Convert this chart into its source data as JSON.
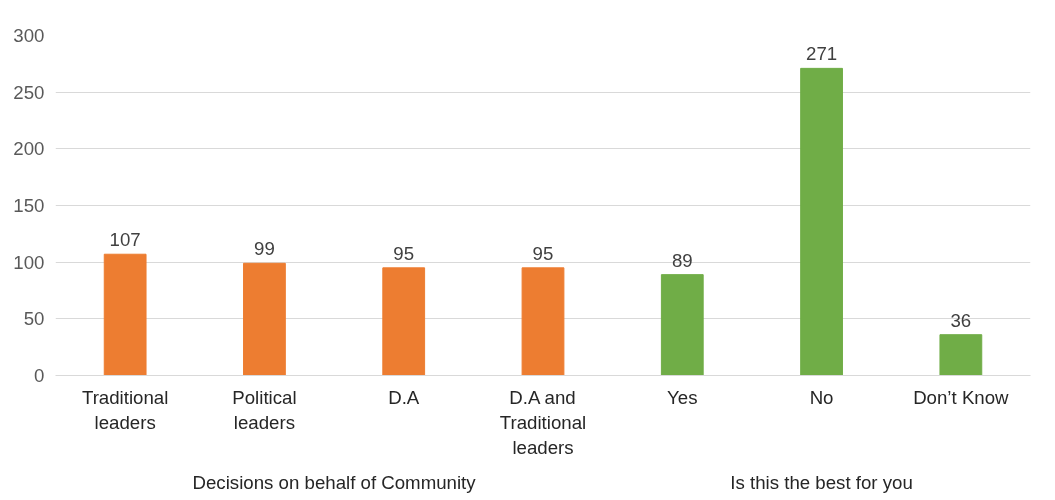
{
  "chart_data": {
    "type": "bar",
    "categories": [
      "Traditional leaders",
      "Political leaders",
      "D.A",
      "D.A and Traditional leaders",
      "Yes",
      "No",
      "Don’t Know"
    ],
    "series": [
      {
        "color": "#ed7d31",
        "values": [
          107,
          99,
          95,
          95,
          null,
          null,
          null
        ]
      },
      {
        "color": "#70ad47",
        "values": [
          null,
          null,
          null,
          null,
          89,
          271,
          36
        ]
      }
    ],
    "annotations": [
      "Decisions on behalf of Community",
      "Is this the best for you"
    ],
    "ylim": [
      0,
      300
    ],
    "yticks": [
      0,
      50,
      100,
      150,
      200,
      250,
      300
    ],
    "grid": "y",
    "data_labels": true
  }
}
